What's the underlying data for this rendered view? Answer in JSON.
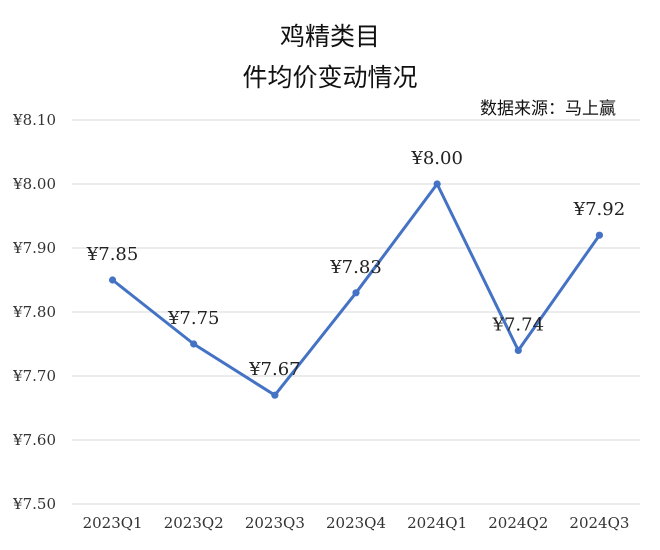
{
  "chart_data": {
    "type": "line",
    "title_line1": "鸡精类目",
    "title_line2": "件均价变动情况",
    "source": "数据来源：马上赢",
    "categories": [
      "2023Q1",
      "2023Q2",
      "2023Q3",
      "2023Q4",
      "2024Q1",
      "2024Q2",
      "2024Q3"
    ],
    "series": [
      {
        "values": [
          7.85,
          7.75,
          7.67,
          7.83,
          8.0,
          7.74,
          7.92
        ],
        "labels": [
          "¥7.85",
          "¥7.75",
          "¥7.67",
          "¥7.83",
          "¥8.00",
          "¥7.74",
          "¥7.92"
        ],
        "color": "#4472C4"
      }
    ],
    "ylim": [
      7.5,
      8.1
    ],
    "yticks": [
      7.5,
      7.6,
      7.7,
      7.8,
      7.9,
      8.0,
      8.1
    ],
    "ytick_labels": [
      "¥7.50",
      "¥7.60",
      "¥7.70",
      "¥7.80",
      "¥7.90",
      "¥8.00",
      "¥8.10"
    ],
    "grid": true,
    "gridline_color": "#d9d9d9",
    "legend": "none"
  }
}
